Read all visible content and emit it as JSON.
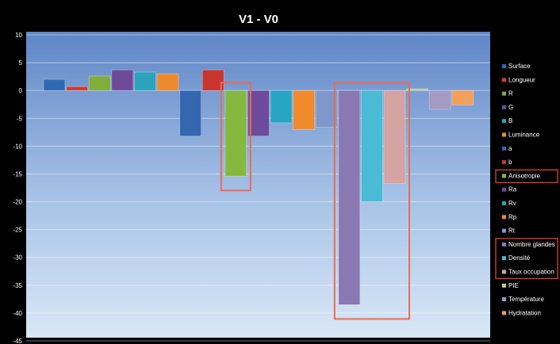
{
  "chart_data": {
    "type": "bar",
    "title": "V1 - V0",
    "xlabel": "",
    "ylabel": "",
    "ylim": [
      -45,
      10
    ],
    "yticks": [
      10,
      5,
      0,
      -5,
      -10,
      -15,
      -20,
      -25,
      -30,
      -35,
      -40,
      -45
    ],
    "grid": true,
    "legend_position": "right",
    "series": [
      {
        "name": "Surface",
        "value": 2.0,
        "color": "#2f69b4"
      },
      {
        "name": "Longueur",
        "value": 0.7,
        "color": "#d23a36"
      },
      {
        "name": "R",
        "value": 2.6,
        "color": "#7fae3a"
      },
      {
        "name": "G",
        "value": 3.7,
        "color": "#6e4a99"
      },
      {
        "name": "B",
        "value": 3.3,
        "color": "#2ba3bd"
      },
      {
        "name": "Luminance",
        "value": 3.0,
        "color": "#ee8a2e"
      },
      {
        "name": "a",
        "value": -8.2,
        "color": "#3566b0"
      },
      {
        "name": "b",
        "value": 3.7,
        "color": "#c83430"
      },
      {
        "name": "Anisotropie",
        "value": -15.4,
        "color": "#86b83f"
      },
      {
        "name": "Ra",
        "value": -8.2,
        "color": "#6d4b9a"
      },
      {
        "name": "Rv",
        "value": -5.8,
        "color": "#27a5c2"
      },
      {
        "name": "Rp",
        "value": -7.0,
        "color": "#f08a2c"
      },
      {
        "name": "Rt",
        "value": -6.6,
        "color": "#7f97c9"
      },
      {
        "name": "Nombre glandes",
        "value": -38.5,
        "color": "#8a78b3"
      },
      {
        "name": "Densité",
        "value": -20.0,
        "color": "#4bbbd5"
      },
      {
        "name": "Taux occupation",
        "value": -16.7,
        "color": "#d4a3a2"
      },
      {
        "name": "PIE",
        "value": 0.3,
        "color": "#b9d08e"
      },
      {
        "name": "Température",
        "value": -3.4,
        "color": "#a49ac4"
      },
      {
        "name": "Hydratation",
        "value": -2.6,
        "color": "#f3a05a"
      }
    ],
    "highlight_boxes": [
      {
        "from": "Anisotropie",
        "to": "Anisotropie"
      },
      {
        "from": "Nombre glandes",
        "to": "Taux occupation"
      }
    ],
    "legend_highlights": [
      [
        "Anisotropie"
      ],
      [
        "Nombre glandes",
        "Densité",
        "Taux occupation"
      ]
    ]
  }
}
